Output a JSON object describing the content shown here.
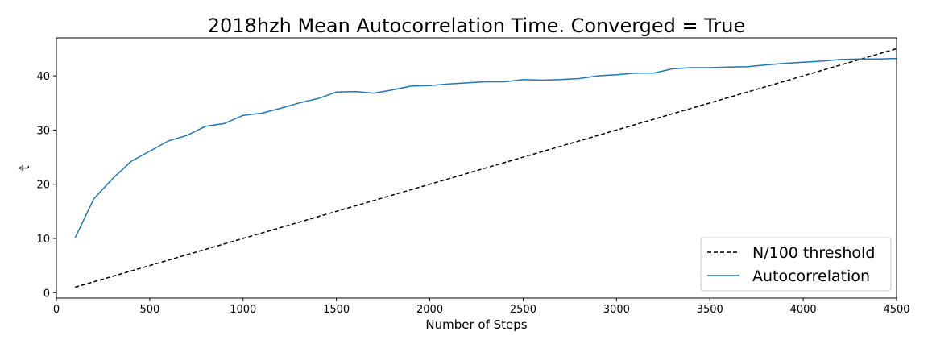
{
  "chart_data": {
    "type": "line",
    "title": "2018hzh Mean Autocorrelation Time. Converged = True",
    "xlabel": "Number of Steps",
    "ylabel": "τ̂",
    "xlim": [
      0,
      4500
    ],
    "ylim": [
      -1,
      47
    ],
    "xticks": [
      0,
      500,
      1000,
      1500,
      2000,
      2500,
      3000,
      3500,
      4000,
      4500
    ],
    "yticks": [
      0,
      10,
      20,
      30,
      40
    ],
    "grid": false,
    "legend_position": "bottom-right",
    "series": [
      {
        "name": "N/100 threshold",
        "style": "dashed",
        "color": "#000000",
        "x": [
          100,
          4500
        ],
        "y": [
          1,
          45
        ]
      },
      {
        "name": "Autocorrelation",
        "style": "solid",
        "color": "#1f77b4",
        "x": [
          100,
          200,
          300,
          400,
          500,
          600,
          700,
          800,
          900,
          1000,
          1100,
          1200,
          1300,
          1400,
          1500,
          1600,
          1700,
          1800,
          1900,
          2000,
          2100,
          2200,
          2300,
          2400,
          2500,
          2600,
          2700,
          2800,
          2900,
          3000,
          3100,
          3200,
          3300,
          3400,
          3500,
          3600,
          3700,
          3800,
          3900,
          4000,
          4100,
          4200,
          4300,
          4400,
          4500
        ],
        "y": [
          10.1,
          17.3,
          21.0,
          24.2,
          26.1,
          28.0,
          29.0,
          30.7,
          31.2,
          32.7,
          33.1,
          34.0,
          35.0,
          35.8,
          37.0,
          37.1,
          36.8,
          37.4,
          38.1,
          38.2,
          38.5,
          38.7,
          38.9,
          38.9,
          39.3,
          39.2,
          39.3,
          39.5,
          40.0,
          40.2,
          40.5,
          40.5,
          41.3,
          41.5,
          41.5,
          41.6,
          41.7,
          42.0,
          42.3,
          42.5,
          42.7,
          43.0,
          43.1,
          43.1,
          43.2
        ]
      }
    ]
  }
}
